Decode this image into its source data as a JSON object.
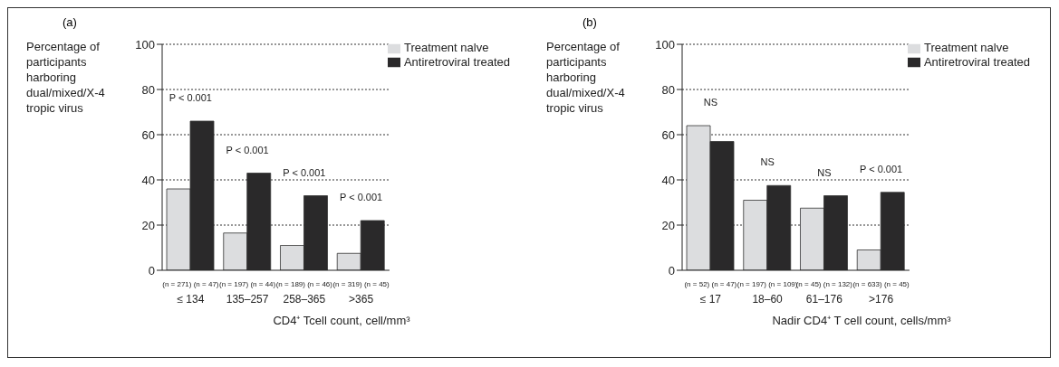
{
  "chart_data": [
    {
      "type": "bar",
      "title": "(a)",
      "ylabel": "Percentage of participants harboring dual/mixed/X-4 tropic virus",
      "xlabel": "CD4⁺ Tcell count, cell/mm³",
      "categories": [
        "≤ 134",
        "135–257",
        "258–365",
        ">365"
      ],
      "series": [
        {
          "name": "Treatment nalve",
          "color": "#dcdddf",
          "values": [
            36,
            16.5,
            11,
            7.5
          ]
        },
        {
          "name": "Antiretroviral treated",
          "color": "#2a292a",
          "values": [
            66,
            43,
            33,
            22
          ]
        }
      ],
      "ylim": [
        0,
        100
      ],
      "yticks": [
        0,
        20,
        40,
        60,
        80,
        100
      ],
      "grid": "y",
      "legend": "top right",
      "annotations": [
        "P < 0.001",
        "P < 0.001",
        "P < 0.001",
        "P < 0.001",
        "(n = 271) (n = 47)",
        "(n = 197) (n = 44)",
        "(n = 189) (n = 46)",
        "(n = 319) (n = 45)"
      ]
    },
    {
      "type": "bar",
      "title": "(b)",
      "ylabel": "Percentage of participants harboring dual/mixed/X-4 tropic virus",
      "xlabel": "Nadir CD4⁺ T cell count, cells/mm³",
      "categories": [
        "≤ 17",
        "18–60",
        "61–176",
        ">176"
      ],
      "series": [
        {
          "name": "Treatment nalve",
          "color": "#dcdddf",
          "values": [
            64,
            31,
            27.5,
            9
          ]
        },
        {
          "name": "Antiretroviral treated",
          "color": "#2a292a",
          "values": [
            57,
            37.5,
            33,
            34.5
          ]
        }
      ],
      "ylim": [
        0,
        100
      ],
      "yticks": [
        0,
        20,
        40,
        60,
        80,
        100
      ],
      "grid": "y",
      "legend": "top right",
      "annotations": [
        "NS",
        "NS",
        "NS",
        "P < 0.001",
        "(n = 52) (n = 47)",
        "(n = 197) (n = 109)",
        "(n = 45) (n = 132)",
        "(n = 633) (n = 45)"
      ]
    }
  ]
}
